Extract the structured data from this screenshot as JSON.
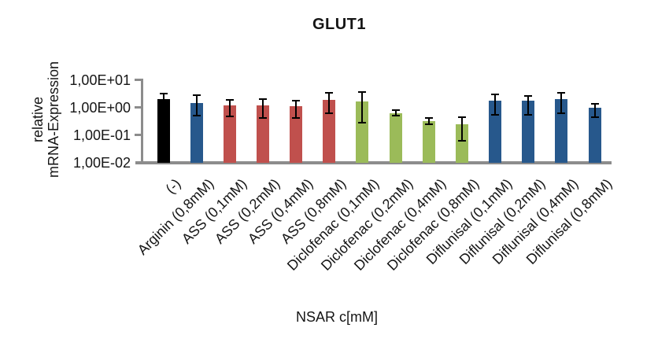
{
  "title": "GLUT1",
  "chart_data": {
    "type": "bar",
    "title": "GLUT1",
    "xlabel": "NSAR c[mM]",
    "ylabel": "relative mRNA-Expression",
    "ylabel_lines": [
      "relative",
      "mRNA-Expression"
    ],
    "y_scale": "log",
    "ylim": [
      0.01,
      10
    ],
    "grid": false,
    "legend": "none",
    "y_ticks": [
      {
        "label": "1,00E+01",
        "value": 10
      },
      {
        "label": "1,00E+00",
        "value": 1
      },
      {
        "label": "1,00E-01",
        "value": 0.1
      },
      {
        "label": "1,00E-02",
        "value": 0.01
      }
    ],
    "categories": [
      "(-)",
      "Arginin (0,8mM)",
      "ASS (0,1mM)",
      "ASS (0,2mM)",
      "ASS (0,4mM)",
      "ASS (0,8mM)",
      "Diclofenac (0,1mM)",
      "Diclofenac (0,2mM)",
      "Diclofenac (0,4mM)",
      "Diclofenac (0,8mM)",
      "Diflunisal (0,1mM)",
      "Diflunisal (0,2mM)",
      "Diflunisal (0,4mM)",
      "Diflunisal (0,8mM)"
    ],
    "values": [
      2.0,
      1.4,
      1.2,
      1.2,
      1.1,
      1.85,
      1.65,
      0.63,
      0.31,
      0.24,
      1.75,
      1.7,
      2.0,
      0.95
    ],
    "error_hi": [
      3.2,
      2.7,
      1.85,
      1.95,
      1.8,
      3.4,
      3.55,
      0.78,
      0.42,
      0.43,
      3.05,
      2.6,
      3.4,
      1.35
    ],
    "error_lo": [
      1.4,
      0.5,
      0.48,
      0.42,
      0.42,
      0.6,
      0.27,
      0.49,
      0.24,
      0.063,
      0.53,
      0.55,
      0.6,
      0.43
    ],
    "bar_color_keys": [
      "black",
      "blue",
      "red",
      "red",
      "red",
      "red",
      "green",
      "green",
      "green",
      "green",
      "blue",
      "blue",
      "blue",
      "blue"
    ],
    "colors": {
      "black": "#000000",
      "blue": "#27588C",
      "red": "#C0504D",
      "green": "#9BBB59"
    },
    "axis_color": "#8C8C8C",
    "error_bar_color": "#000000"
  }
}
